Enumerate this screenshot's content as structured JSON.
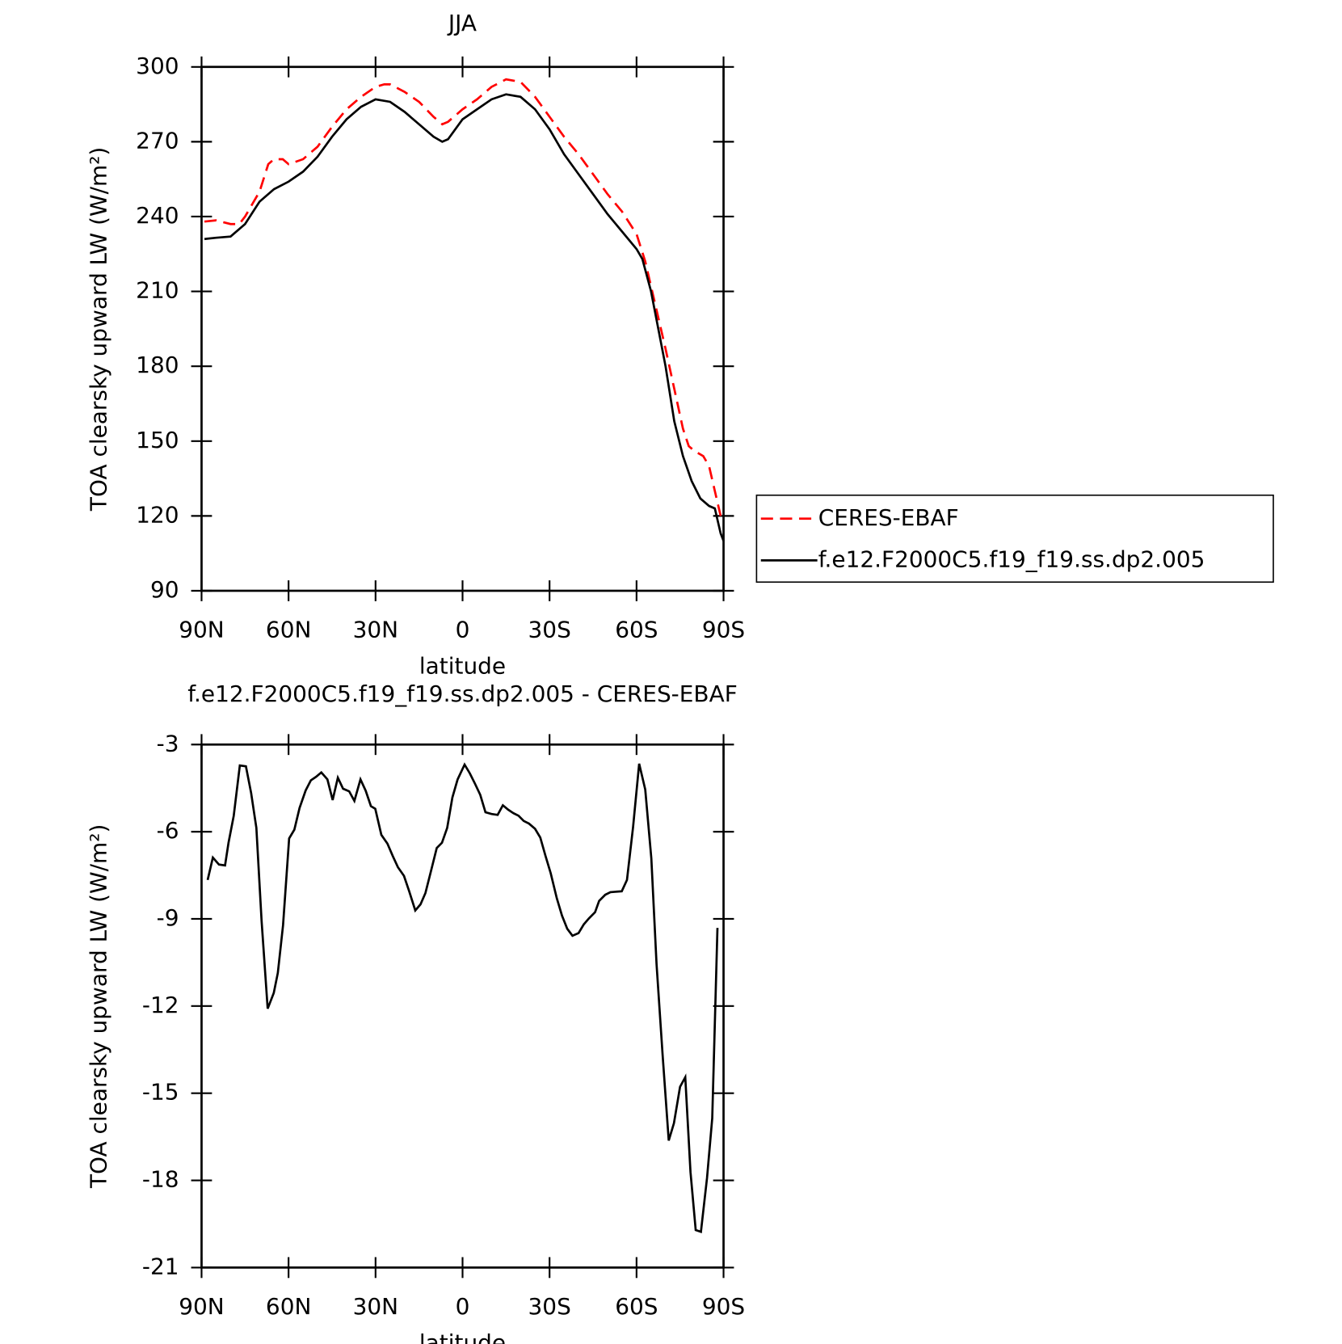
{
  "chart_data": [
    {
      "type": "line",
      "title": "JJA",
      "xlabel": "latitude",
      "ylabel": "TOA clearsky upward LW (W/m²)",
      "xlim": [
        90,
        -90
      ],
      "ylim": [
        90,
        300
      ],
      "xticks": [
        {
          "value": 90,
          "label": "90N"
        },
        {
          "value": 60,
          "label": "60N"
        },
        {
          "value": 30,
          "label": "30N"
        },
        0,
        {
          "value": -30,
          "label": "30S"
        },
        {
          "value": -60,
          "label": "60S"
        },
        {
          "value": -90,
          "label": "90S"
        }
      ],
      "yticks": [
        90,
        120,
        150,
        180,
        210,
        240,
        270,
        300
      ],
      "legend": "right",
      "series": [
        {
          "name": "CERES-EBAF",
          "color": "#ff0000",
          "line_style": "dashed",
          "x": [
            89,
            85,
            80,
            77,
            75,
            70,
            67,
            65,
            62,
            60,
            55,
            50,
            45,
            40,
            35,
            30,
            27,
            25,
            20,
            15,
            10,
            7,
            5,
            0,
            -5,
            -10,
            -15,
            -20,
            -25,
            -30,
            -35,
            -40,
            -45,
            -50,
            -55,
            -60,
            -63,
            -65,
            -70,
            -73,
            -76,
            -78,
            -80,
            -83,
            -85,
            -89
          ],
          "values": [
            238,
            238.5,
            237,
            237,
            240,
            250,
            261,
            263,
            263,
            261,
            263,
            268,
            276,
            283,
            288,
            292,
            293,
            293,
            290,
            286,
            280,
            277,
            278,
            283,
            287,
            292,
            295,
            294,
            288,
            280,
            272,
            265,
            257,
            249,
            242,
            233,
            222,
            212,
            187,
            171,
            155,
            148,
            146,
            144,
            140,
            120
          ]
        },
        {
          "name": "f.e12.F2000C5.f19_f19.ss.dp2.005",
          "color": "#000000",
          "line_style": "solid",
          "x": [
            89,
            85,
            80,
            75,
            70,
            65,
            60,
            55,
            50,
            45,
            40,
            35,
            30,
            25,
            20,
            15,
            10,
            7,
            5,
            0,
            -5,
            -10,
            -15,
            -20,
            -25,
            -30,
            -35,
            -40,
            -45,
            -50,
            -55,
            -60,
            -62,
            -65,
            -70,
            -73,
            -76,
            -79,
            -82,
            -85,
            -87,
            -89,
            -90
          ],
          "values": [
            231,
            231.5,
            232,
            237,
            246,
            251,
            254,
            258,
            264,
            272,
            279,
            284,
            287,
            286,
            282,
            277,
            272,
            270,
            271,
            279,
            283,
            287,
            289,
            288,
            283,
            275,
            265,
            257,
            249,
            241,
            234,
            227,
            223,
            210,
            180,
            158,
            144,
            134,
            127,
            124,
            123,
            113,
            110
          ]
        }
      ]
    },
    {
      "type": "line",
      "title": "f.e12.F2000C5.f19_f19.ss.dp2.005 - CERES-EBAF",
      "xlabel": "latitude",
      "ylabel": "TOA clearsky upward LW (W/m²)",
      "xlim": [
        90,
        -90
      ],
      "ylim": [
        -21,
        -3
      ],
      "xticks": [
        {
          "value": 90,
          "label": "90N"
        },
        {
          "value": 60,
          "label": "60N"
        },
        {
          "value": 30,
          "label": "30N"
        },
        0,
        {
          "value": -30,
          "label": "30S"
        },
        {
          "value": -60,
          "label": "60S"
        },
        {
          "value": -90,
          "label": "90S"
        }
      ],
      "yticks": [
        -21,
        -18,
        -15,
        -12,
        -9,
        -6,
        -3
      ],
      "series": [
        {
          "color": "#000000",
          "line_style": "solid",
          "x": [
            87.9,
            86.1,
            84,
            81.9,
            80.7,
            78.9,
            76.8,
            74.7,
            72.9,
            71.1,
            69.3,
            67.2,
            65.1,
            63.7,
            61.9,
            59.8,
            58,
            56.2,
            54.1,
            52.3,
            50.5,
            48.7,
            46.6,
            44.8,
            43,
            41.2,
            39.1,
            37.3,
            35.2,
            33.4,
            31.6,
            30.1,
            28,
            25.9,
            24.1,
            22.3,
            20.2,
            18.4,
            16.3,
            14.5,
            12.8,
            11,
            8.9,
            7.1,
            5.3,
            3.5,
            1.7,
            -0.7,
            -2.5,
            -4.3,
            -6.1,
            -7.9,
            -10,
            -12.1,
            -13.9,
            -15.7,
            -17.5,
            -19.3,
            -21.1,
            -22.9,
            -25,
            -26.8,
            -28.6,
            -30.4,
            -32.5,
            -34.3,
            -36.1,
            -37.9,
            -40,
            -41.8,
            -43.6,
            -45.7,
            -47.1,
            -49.2,
            -51,
            -54.9,
            -56.7,
            -58.8,
            -60.9,
            -63,
            -65.1,
            -66.9,
            -69,
            -71.1,
            -72.9,
            -75,
            -76.8,
            -78.6,
            -80.4,
            -82.2,
            -84.3,
            -86.1,
            -87.9
          ],
          "values": [
            -7.66,
            -6.89,
            -7.13,
            -7.16,
            -6.38,
            -5.45,
            -3.72,
            -3.75,
            -4.67,
            -5.87,
            -9.07,
            -12.09,
            -11.55,
            -10.86,
            -9.22,
            -6.23,
            -5.93,
            -5.18,
            -4.58,
            -4.23,
            -4.11,
            -3.96,
            -4.2,
            -4.91,
            -4.14,
            -4.52,
            -4.61,
            -4.94,
            -4.2,
            -4.59,
            -5.12,
            -5.21,
            -6.11,
            -6.41,
            -6.83,
            -7.22,
            -7.52,
            -8.05,
            -8.71,
            -8.5,
            -8.11,
            -7.4,
            -6.56,
            -6.38,
            -5.87,
            -4.82,
            -4.2,
            -3.69,
            -3.99,
            -4.35,
            -4.73,
            -5.33,
            -5.39,
            -5.42,
            -5.09,
            -5.24,
            -5.36,
            -5.45,
            -5.63,
            -5.72,
            -5.9,
            -6.2,
            -6.83,
            -7.43,
            -8.29,
            -8.89,
            -9.34,
            -9.58,
            -9.49,
            -9.19,
            -8.98,
            -8.77,
            -8.38,
            -8.17,
            -8.08,
            -8.05,
            -7.66,
            -5.84,
            -3.66,
            -4.55,
            -6.92,
            -10.56,
            -13.7,
            -16.63,
            -16.03,
            -14.78,
            -14.45,
            -17.71,
            -19.71,
            -19.77,
            -17.92,
            -15.86,
            -9.31
          ]
        }
      ]
    }
  ]
}
